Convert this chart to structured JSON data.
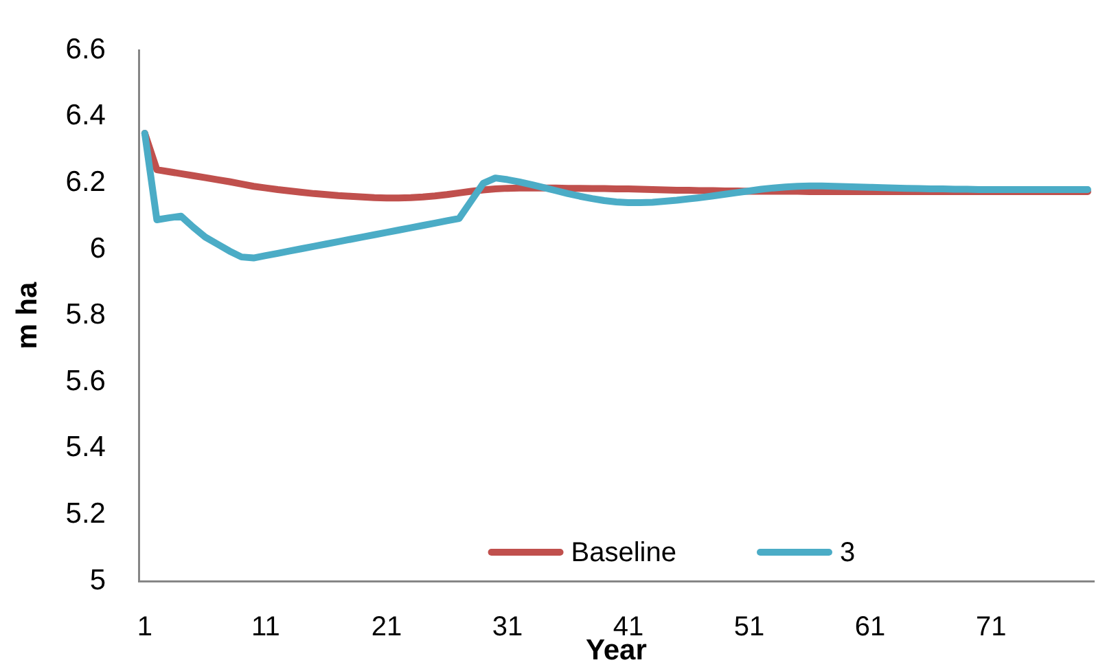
{
  "chart_data": {
    "type": "line",
    "xlabel": "Year",
    "ylabel": "m ha",
    "categories": [
      "1",
      null,
      null,
      null,
      null,
      null,
      null,
      null,
      null,
      null,
      "11",
      null,
      null,
      null,
      null,
      null,
      null,
      null,
      null,
      null,
      "21",
      null,
      null,
      null,
      null,
      null,
      null,
      null,
      null,
      null,
      "31",
      null,
      null,
      null,
      null,
      null,
      null,
      null,
      null,
      null,
      "41",
      null,
      null,
      null,
      null,
      null,
      null,
      null,
      null,
      null,
      "51",
      null,
      null,
      null,
      null,
      null,
      null,
      null,
      null,
      null,
      "61",
      null,
      null,
      null,
      null,
      null,
      null,
      null,
      null,
      null,
      "71",
      null,
      null,
      null,
      null,
      null,
      null,
      null,
      null
    ],
    "series": [
      {
        "name": "Baseline",
        "color": "#c0504d",
        "values": [
          6.35,
          6.24,
          6.234,
          6.228,
          6.222,
          6.216,
          6.21,
          6.204,
          6.197,
          6.19,
          6.185,
          6.18,
          6.176,
          6.172,
          6.168,
          6.165,
          6.162,
          6.16,
          6.158,
          6.156,
          6.155,
          6.155,
          6.156,
          6.158,
          6.161,
          6.165,
          6.17,
          6.175,
          6.179,
          6.182,
          6.184,
          6.185,
          6.185,
          6.185,
          6.185,
          6.184,
          6.184,
          6.183,
          6.183,
          6.182,
          6.182,
          6.181,
          6.18,
          6.179,
          6.178,
          6.178,
          6.177,
          6.177,
          6.176,
          6.176,
          6.175,
          6.175,
          6.175,
          6.175,
          6.175,
          6.174,
          6.174,
          6.174,
          6.174,
          6.174,
          6.174,
          6.174,
          6.174,
          6.174,
          6.174,
          6.174,
          6.174,
          6.174,
          6.174,
          6.174,
          6.174,
          6.174,
          6.174,
          6.174,
          6.174,
          6.174,
          6.174,
          6.174,
          6.174
        ]
      },
      {
        "name": "3",
        "color": "#4bacc6",
        "values": [
          6.35,
          6.089,
          6.095,
          6.1,
          6.067,
          6.037,
          6.016,
          5.995,
          5.977,
          5.974,
          5.981,
          5.988,
          5.995,
          6.002,
          6.009,
          6.016,
          6.023,
          6.03,
          6.037,
          6.044,
          6.051,
          6.058,
          6.065,
          6.072,
          6.079,
          6.086,
          6.093,
          6.146,
          6.199,
          6.215,
          6.21,
          6.203,
          6.195,
          6.186,
          6.177,
          6.168,
          6.16,
          6.153,
          6.147,
          6.143,
          6.141,
          6.141,
          6.142,
          6.145,
          6.148,
          6.152,
          6.156,
          6.161,
          6.166,
          6.171,
          6.176,
          6.181,
          6.185,
          6.188,
          6.19,
          6.191,
          6.191,
          6.19,
          6.189,
          6.188,
          6.187,
          6.186,
          6.185,
          6.184,
          6.183,
          6.182,
          6.182,
          6.181,
          6.181,
          6.18,
          6.18,
          6.18,
          6.18,
          6.18,
          6.18,
          6.18,
          6.18,
          6.18,
          6.18
        ]
      }
    ],
    "ylim": [
      5,
      6.6
    ],
    "yticks": [
      5,
      5.2,
      5.4,
      5.6,
      5.8,
      6,
      6.2,
      6.4,
      6.6
    ],
    "legend": "bottom",
    "grid": false,
    "marker": "none",
    "line_style": "solid"
  }
}
